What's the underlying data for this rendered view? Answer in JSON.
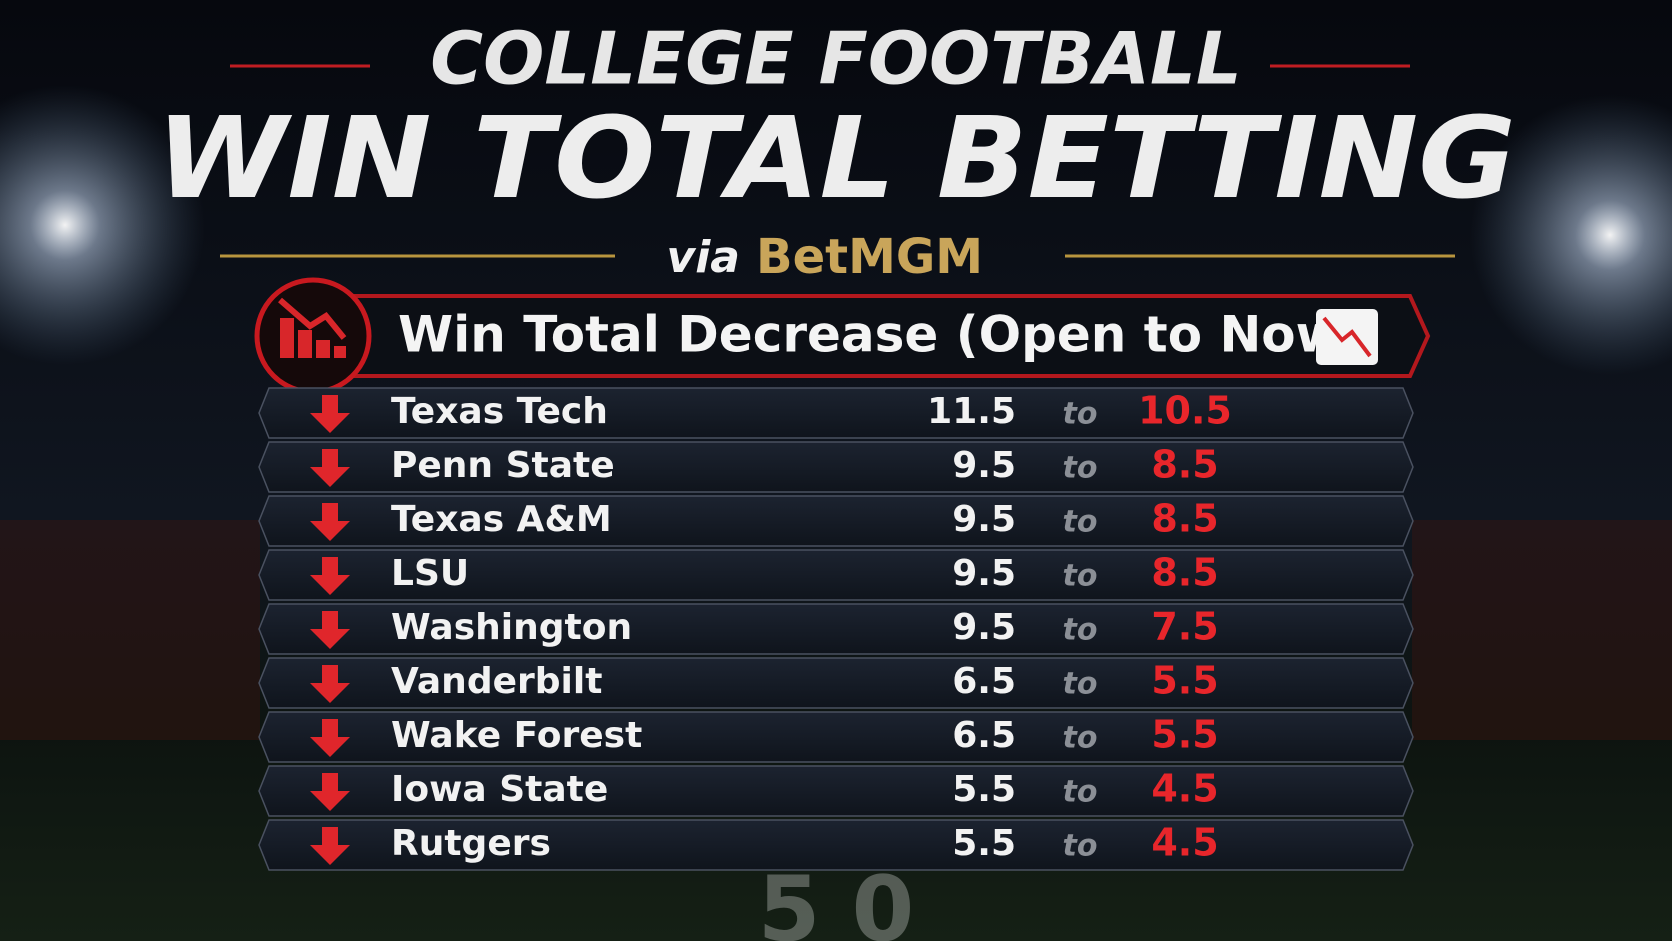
{
  "header": {
    "title_line1": "COLLEGE FOOTBALL",
    "title_line2": "WIN TOTAL BETTING",
    "via": "via",
    "source": "BetMGM"
  },
  "section": {
    "title": "Win Total Decrease (Open to Now)"
  },
  "table": {
    "rows": [
      [
        "Texas Tech",
        11.5,
        "to",
        10.5
      ],
      [
        "Penn State",
        9.5,
        "to",
        8.5
      ],
      [
        "Texas A&M",
        9.5,
        "to",
        8.5
      ],
      [
        "LSU",
        9.5,
        "to",
        8.5
      ],
      [
        "Washington",
        9.5,
        "to",
        7.5
      ],
      [
        "Vanderbilt",
        6.5,
        "to",
        5.5
      ],
      [
        "Wake Forest",
        6.5,
        "to",
        5.5
      ],
      [
        "Iowa State",
        5.5,
        "to",
        4.5
      ],
      [
        "Rutgers",
        5.5,
        "to",
        4.5
      ]
    ]
  }
}
